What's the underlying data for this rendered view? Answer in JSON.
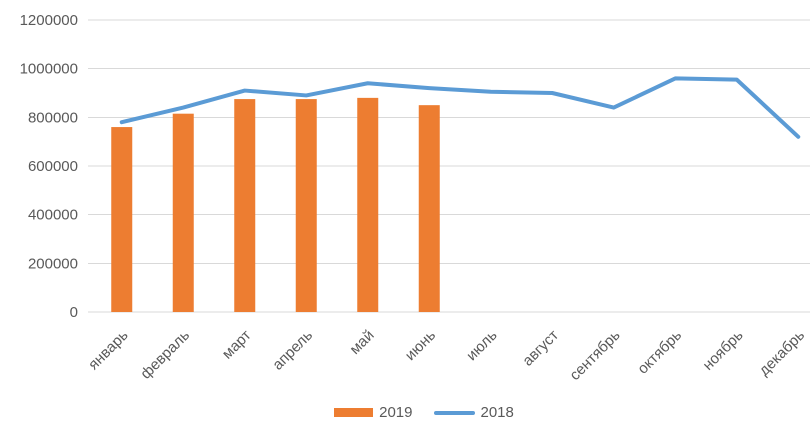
{
  "chart_data": {
    "type": "combo-bar-line",
    "title": "",
    "categories": [
      "январь",
      "февраль",
      "март",
      "апрель",
      "май",
      "июнь",
      "июль",
      "август",
      "сентябрь",
      "октябрь",
      "ноябрь",
      "декабрь"
    ],
    "series": [
      {
        "name": "2019",
        "type": "bar",
        "color": "#ED7D31",
        "values": [
          760000,
          815000,
          875000,
          875000,
          880000,
          850000,
          null,
          null,
          null,
          null,
          null,
          null
        ]
      },
      {
        "name": "2018",
        "type": "line",
        "color": "#5B9BD5",
        "values": [
          780000,
          840000,
          910000,
          890000,
          940000,
          920000,
          905000,
          900000,
          840000,
          960000,
          955000,
          720000
        ]
      }
    ],
    "y_axis": {
      "min": 0,
      "max": 1200000,
      "step": 200000,
      "tick_labels": [
        "0",
        "200000",
        "400000",
        "600000",
        "800000",
        "1000000",
        "1200000"
      ]
    },
    "x_label_rotation_deg": 45,
    "grid": true,
    "legend_position": "bottom",
    "colors": {
      "gridline": "#D9D9D9",
      "axis_text": "#595959",
      "background": "#FFFFFF"
    }
  },
  "legend": {
    "items": [
      {
        "label": "2019",
        "swatch": "bar"
      },
      {
        "label": "2018",
        "swatch": "line"
      }
    ]
  }
}
